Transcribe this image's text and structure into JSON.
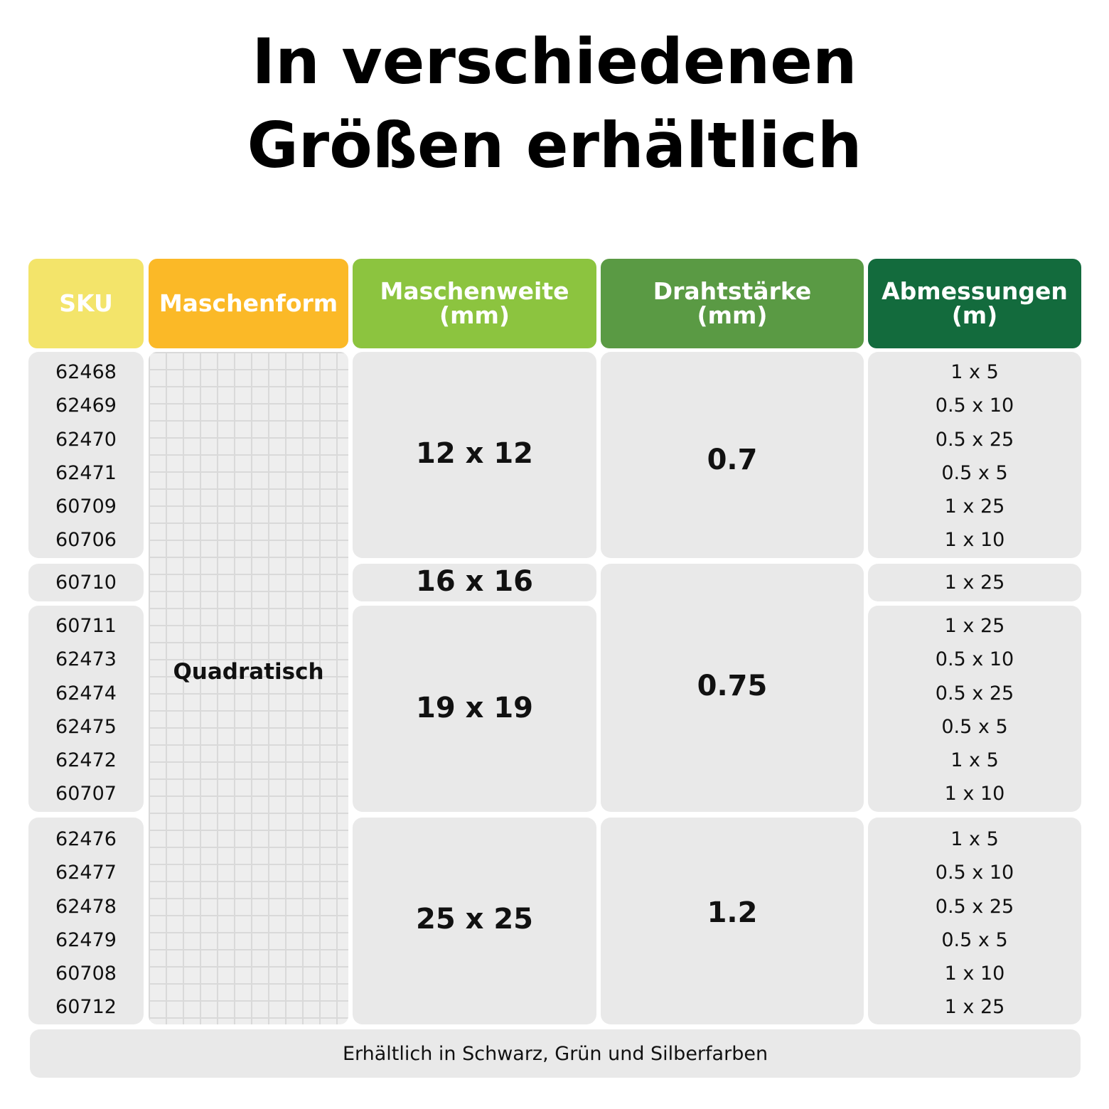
{
  "title": {
    "line1": "In verschiedenen",
    "line2": "Größen erhältlich"
  },
  "headers": {
    "sku": "SKU",
    "form": "Maschenform",
    "weite_1": "Maschenweite",
    "weite_2": "(mm)",
    "draht_1": "Drahtstärke",
    "draht_2": "(mm)",
    "abm_1": "Abmessungen",
    "abm_2": "(m)"
  },
  "colors": {
    "sku": "#f3e46a",
    "form": "#fbb927",
    "weite": "#8cc43f",
    "draht": "#5a9a44",
    "abm": "#136b3d",
    "cell": "#e9e9e9"
  },
  "maschenform": "Quadratisch",
  "groups": [
    {
      "weite": "12 x 12",
      "skus": [
        "62468",
        "62469",
        "62470",
        "62471",
        "60709",
        "60706"
      ],
      "dims": [
        "1 x 5",
        "0.5 x 10",
        "0.5 x 25",
        "0.5 x 5",
        "1 x 25",
        "1 x 10"
      ]
    },
    {
      "weite": "16 x 16",
      "skus": [
        "60710"
      ],
      "dims": [
        "1 x 25"
      ]
    },
    {
      "weite": "19 x 19",
      "skus": [
        "60711",
        "62473",
        "62474",
        "62475",
        "62472",
        "60707"
      ],
      "dims": [
        "1 x 25",
        "0.5 x 10",
        "0.5 x 25",
        "0.5 x 5",
        "1 x 5",
        "1 x 10"
      ]
    },
    {
      "weite": "25 x 25",
      "skus": [
        "62476",
        "62477",
        "62478",
        "62479",
        "60708",
        "60712"
      ],
      "dims": [
        "1 x 5",
        "0.5 x 10",
        "0.5 x 25",
        "0.5 x 5",
        "1 x 10",
        "1 x 25"
      ]
    }
  ],
  "drahtstaerke": [
    "0.7",
    "0.75",
    "1.2"
  ],
  "footer": "Erhältlich in Schwarz, Grün und Silberfarben"
}
